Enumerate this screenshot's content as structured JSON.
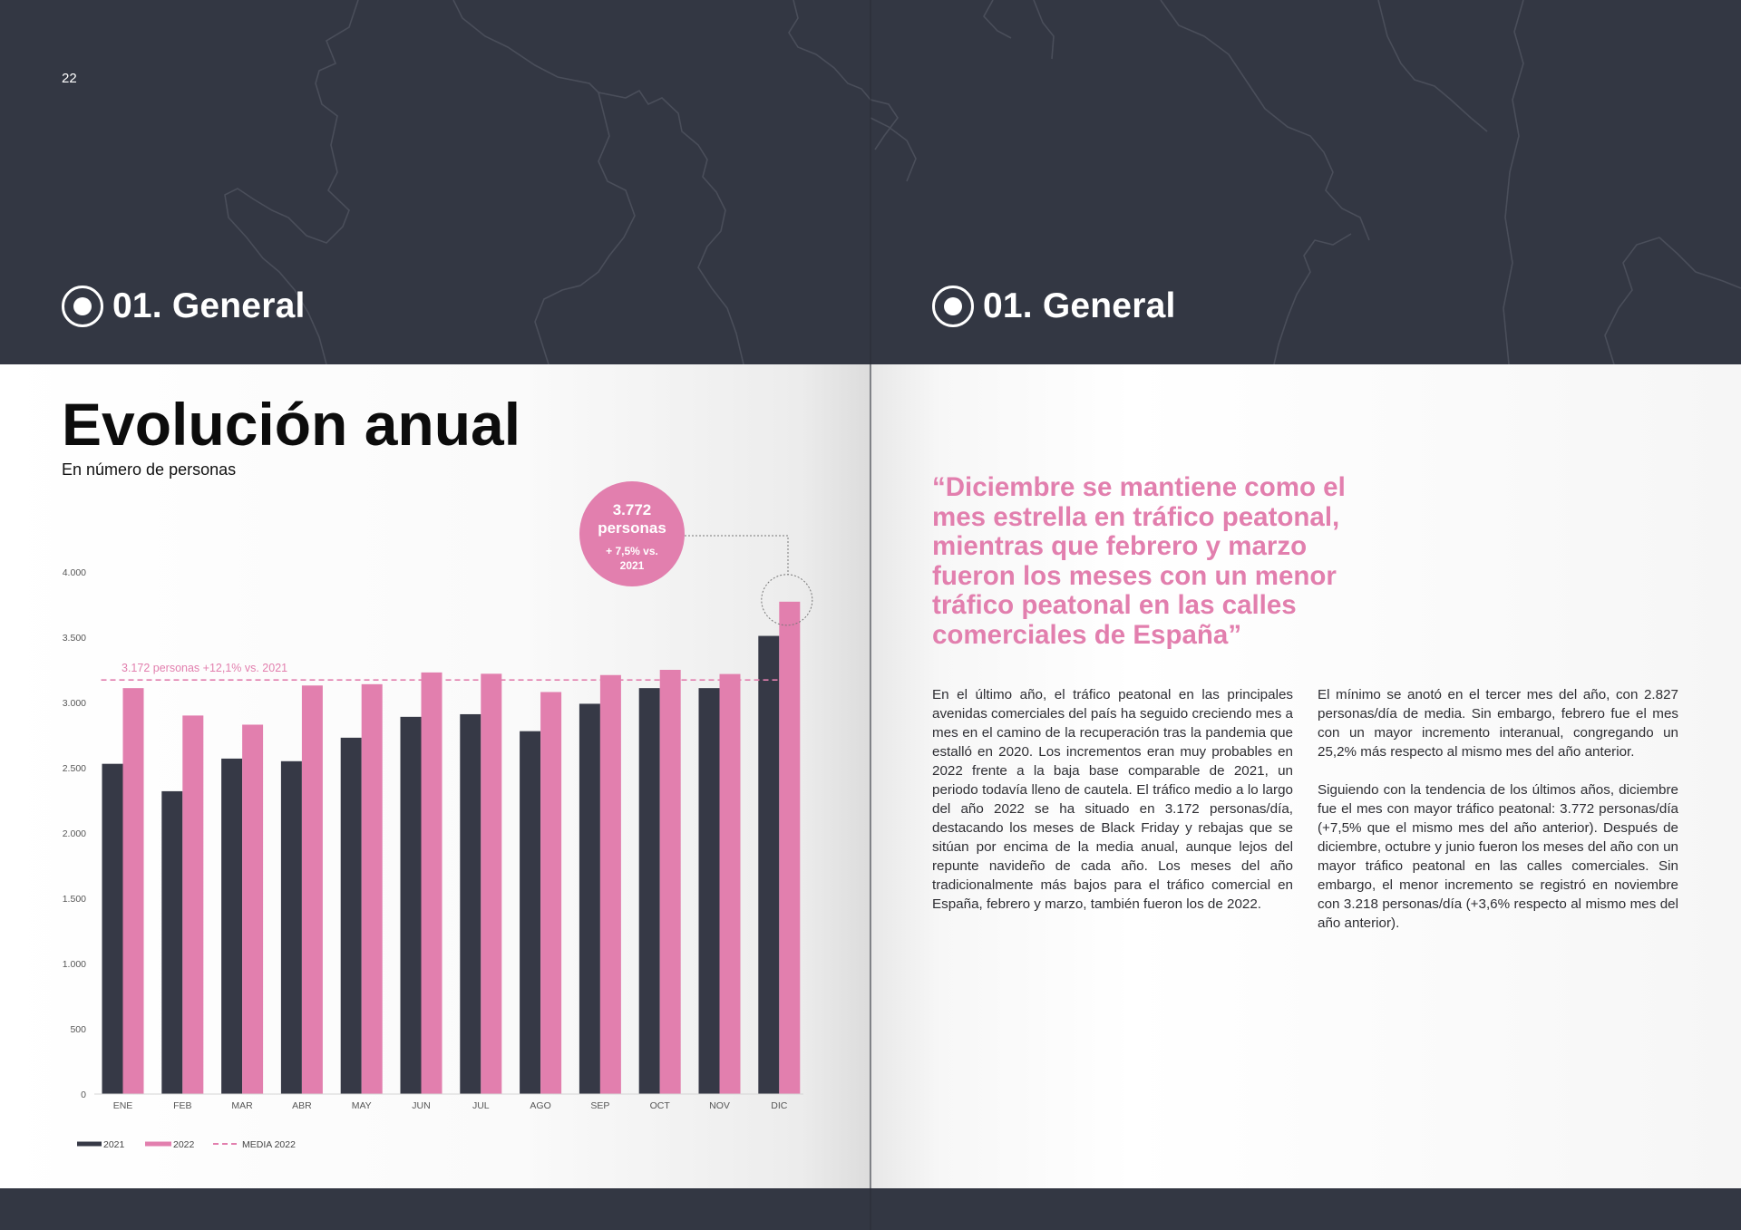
{
  "page": {
    "number": "22"
  },
  "section": {
    "label": "01. General"
  },
  "left": {
    "title": "Evolución anual",
    "subtitle": "En número de personas"
  },
  "callout": {
    "value": "3.772",
    "unit": "personas",
    "change_line1": "+ 7,5% vs.",
    "change_line2": "2021"
  },
  "average_label": "3.172 personas +12,1% vs. 2021",
  "legend": [
    {
      "label": "2021",
      "color": "#363946",
      "style": "solid"
    },
    {
      "label": "2022",
      "color": "#e27fae",
      "style": "solid"
    },
    {
      "label": "MEDIA 2022",
      "color": "#e27fae",
      "style": "dashed"
    }
  ],
  "chart_data": {
    "type": "bar",
    "categories": [
      "ENE",
      "FEB",
      "MAR",
      "ABR",
      "MAY",
      "JUN",
      "JUL",
      "AGO",
      "SEP",
      "OCT",
      "NOV",
      "DIC"
    ],
    "series": [
      {
        "name": "2021",
        "color": "#363946",
        "values": [
          2530,
          2320,
          2570,
          2550,
          2730,
          2890,
          2910,
          2780,
          2990,
          3110,
          3110,
          3510
        ]
      },
      {
        "name": "2022",
        "color": "#e27fae",
        "values": [
          3110,
          2900,
          2830,
          3130,
          3140,
          3230,
          3220,
          3080,
          3210,
          3250,
          3218,
          3772
        ]
      }
    ],
    "reference_line": {
      "name": "MEDIA 2022",
      "value": 3172
    },
    "ylim": [
      0,
      4000
    ],
    "yticks": [
      0,
      500,
      1000,
      1500,
      2000,
      2500,
      3000,
      3500,
      4000
    ],
    "ytick_labels": [
      "0",
      "500",
      "1.000",
      "1.500",
      "2.000",
      "2.500",
      "3.000",
      "3.500",
      "4.000"
    ],
    "grid": false,
    "legend_position": "bottom-left"
  },
  "right": {
    "quote": "“Diciembre se mantiene como el mes estrella en tráfico peatonal, mientras que febrero y marzo fueron los meses con un menor tráfico peatonal en las calles comerciales de España”",
    "col1_p1": "En el último año, el tráfico peatonal en las principales avenidas comerciales del país ha seguido creciendo mes a mes en el camino de la recuperación tras la pandemia que estalló en 2020. Los incrementos eran muy probables en 2022 frente a la baja base comparable de 2021, un periodo todavía lleno de cautela. El tráfico medio a lo largo del año 2022 se ha situado en 3.172 personas/día, destacando los meses de Black Friday y rebajas que se sitúan por encima de la media anual, aunque lejos del repunte navideño de cada año. Los meses del año tradicionalmente más bajos para el tráfico comercial en España, febrero y marzo, también fueron los de 2022.",
    "col2_p1": "El mínimo se anotó en el tercer mes del año, con 2.827 personas/día de media. Sin embargo, febrero fue el mes con un mayor incremento interanual, congregando un 25,2% más respecto al mismo mes del año anterior.",
    "col2_p2": "Siguiendo con la tendencia de los últimos años, diciembre fue el mes con mayor tráfico peatonal: 3.772 personas/día (+7,5% que el mismo mes del año anterior). Después de diciembre, octubre y junio fueron los meses del año con un mayor tráfico peatonal en las calles comerciales. Sin embargo, el menor incremento se registró en noviembre con 3.218 personas/día (+3,6% respecto al mismo mes del año anterior)."
  }
}
